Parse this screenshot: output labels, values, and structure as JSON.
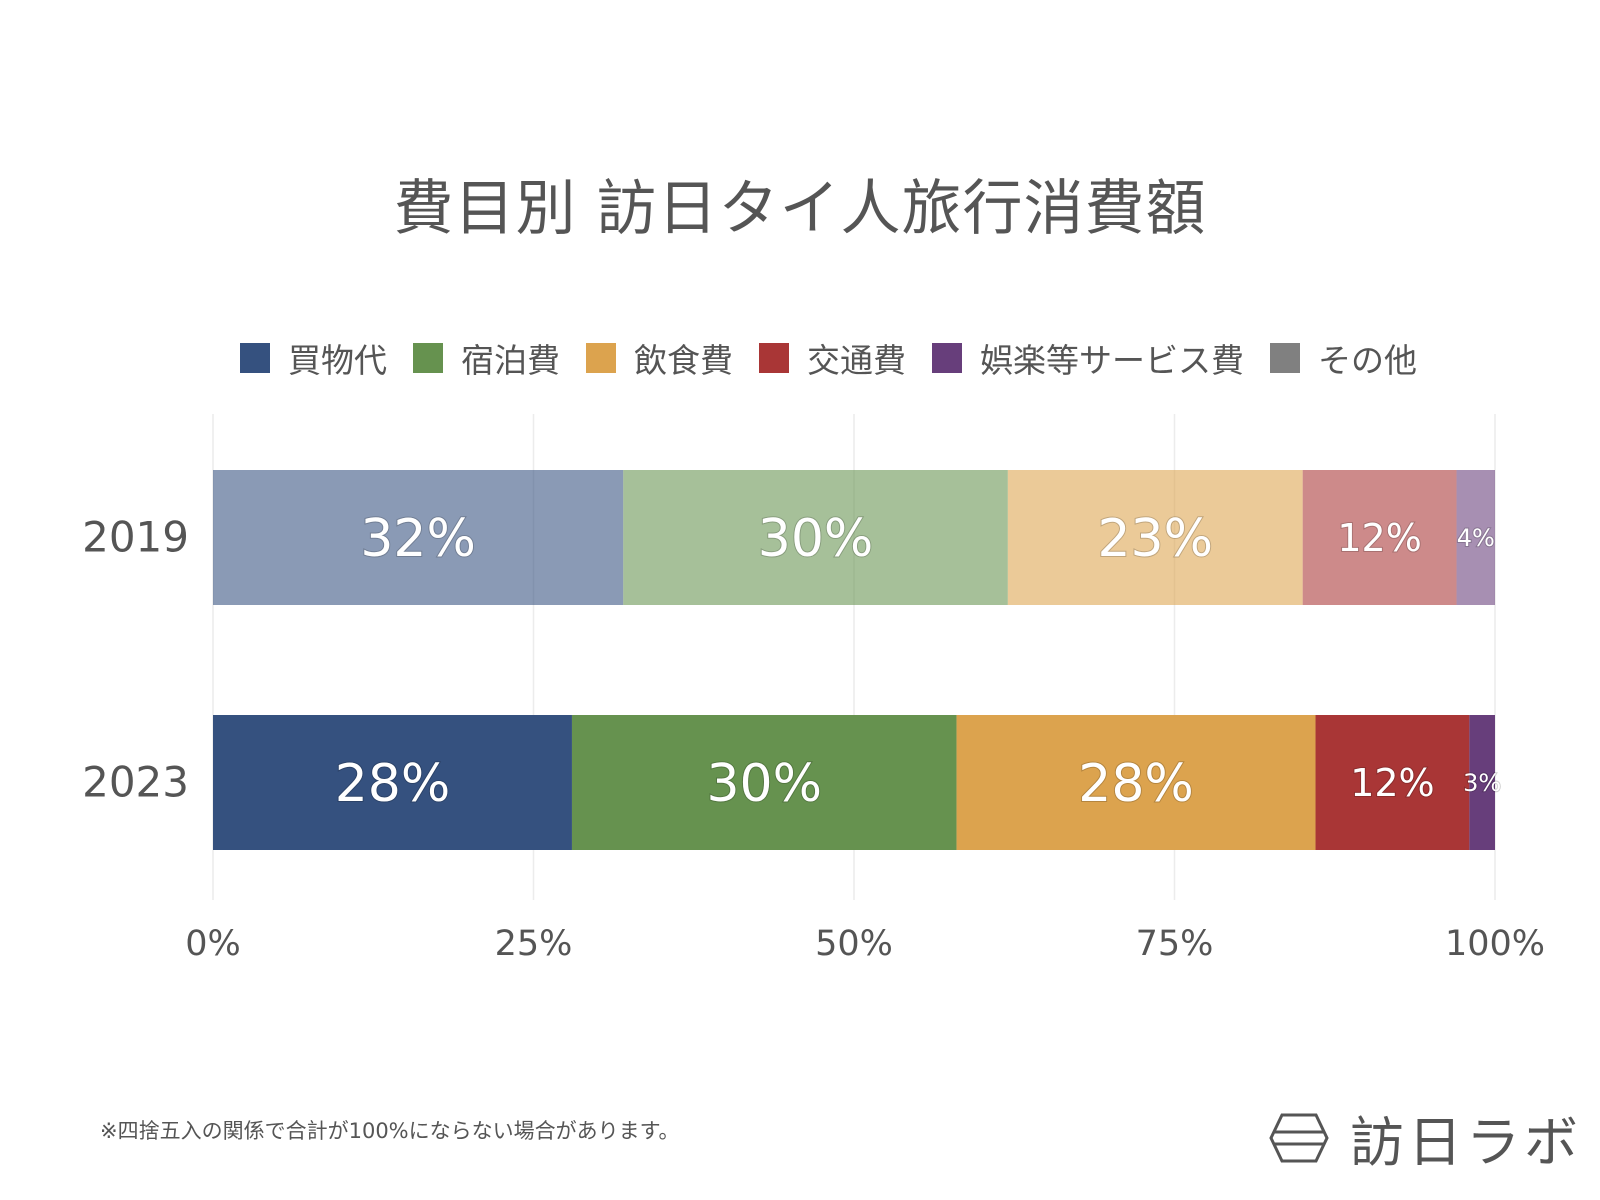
{
  "title": "費目別 訪日タイ人旅行消費額",
  "legend": [
    {
      "label": "買物代",
      "color": "#35517f"
    },
    {
      "label": "宿泊費",
      "color": "#66924f"
    },
    {
      "label": "飲食費",
      "color": "#dca34e"
    },
    {
      "label": "交通費",
      "color": "#a93636"
    },
    {
      "label": "娯楽等サービス費",
      "color": "#673e7b"
    },
    {
      "label": "その他",
      "color": "#808080"
    }
  ],
  "chart_data": {
    "type": "bar",
    "orientation": "horizontal",
    "stacked": true,
    "categories": [
      "2019",
      "2023"
    ],
    "series": [
      {
        "name": "買物代",
        "values": [
          32,
          28
        ],
        "labels": [
          "32%",
          "28%"
        ],
        "color": "#35517f"
      },
      {
        "name": "宿泊費",
        "values": [
          30,
          30
        ],
        "labels": [
          "30%",
          "30%"
        ],
        "color": "#66924f"
      },
      {
        "name": "飲食費",
        "values": [
          23,
          28
        ],
        "labels": [
          "23%",
          "28%"
        ],
        "color": "#dca34e"
      },
      {
        "name": "交通費",
        "values": [
          12,
          12
        ],
        "labels": [
          "12%",
          "12%"
        ],
        "color": "#a93636"
      },
      {
        "name": "娯楽等サービス費",
        "values": [
          4,
          3
        ],
        "labels": [
          "4%",
          "3%"
        ],
        "color": "#673e7b"
      },
      {
        "name": "その他",
        "values": [
          0,
          0
        ],
        "labels": [
          "",
          ""
        ],
        "color": "#808080"
      }
    ],
    "highlight": {
      "2019": "faded",
      "2023": "full"
    },
    "xlim": [
      0,
      100
    ],
    "xticks": [
      0,
      25,
      50,
      75,
      100
    ],
    "xtick_labels": [
      "0%",
      "25%",
      "50%",
      "75%",
      "100%"
    ],
    "grid": true,
    "legend_position": "top"
  },
  "footnote": "※四捨五入の関係で合計が100%にならない場合があります。",
  "brand": {
    "name": "訪日ラボ",
    "icon": "hexagon-logo-icon"
  }
}
